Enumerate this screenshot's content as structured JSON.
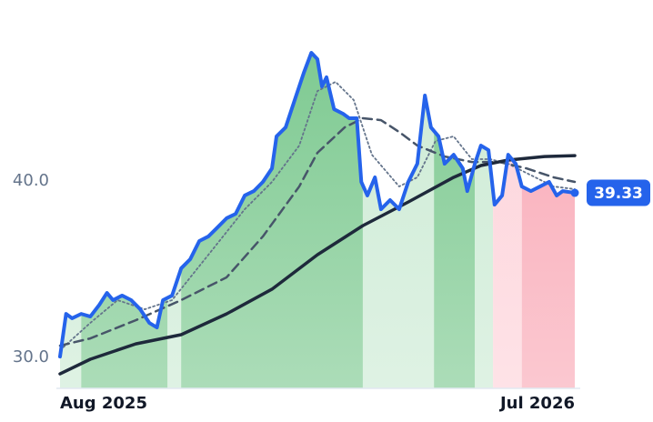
{
  "chart_data": {
    "type": "line",
    "xlim": [
      -2.4,
      343.6
    ],
    "ylim": [
      28.25,
      50.26
    ],
    "xticks": [
      {
        "value": 0,
        "label": "Aug 2025"
      },
      {
        "value": 340,
        "label": "Jul 2026"
      }
    ],
    "yticks": [
      {
        "value": 30,
        "label": "30.0"
      },
      {
        "value": 40,
        "label": "40.0"
      }
    ],
    "grid": false,
    "series": [
      {
        "color": "#2563eb",
        "style": "solid",
        "x": [
          0,
          4,
          8,
          14,
          20,
          26,
          31,
          35,
          41,
          47,
          53,
          59,
          64,
          68,
          74,
          80,
          86,
          92,
          98,
          104,
          110,
          116,
          122,
          128,
          134,
          140,
          143,
          149,
          155,
          161,
          166,
          170,
          173,
          176,
          181,
          187,
          191,
          196,
          199,
          203,
          208,
          212,
          218,
          224,
          230,
          236,
          241,
          245,
          250,
          254,
          260,
          266,
          269,
          274,
          278,
          283,
          287,
          292,
          296,
          301,
          305,
          311,
          317,
          323,
          328,
          332,
          340
        ],
        "values": [
          30.05,
          32.47,
          32.22,
          32.47,
          32.32,
          32.99,
          33.66,
          33.25,
          33.51,
          33.25,
          32.73,
          31.96,
          31.7,
          33.25,
          33.51,
          35.05,
          35.57,
          36.6,
          36.86,
          37.37,
          37.89,
          38.14,
          39.18,
          39.43,
          39.95,
          40.72,
          42.53,
          43.04,
          44.59,
          46.13,
          47.27,
          46.91,
          45.36,
          45.88,
          44.07,
          43.81,
          43.56,
          43.56,
          39.95,
          39.18,
          40.21,
          38.4,
          38.92,
          38.4,
          39.95,
          40.98,
          44.85,
          43.04,
          42.53,
          40.98,
          41.49,
          40.72,
          39.43,
          40.98,
          42.01,
          41.75,
          38.66,
          39.18,
          41.49,
          40.98,
          39.69,
          39.43,
          39.69,
          39.95,
          39.18,
          39.43,
          39.33
        ]
      },
      {
        "color": "#1e293b",
        "style": "solid",
        "x": [
          0,
          20,
          50,
          80,
          110,
          140,
          170,
          200,
          230,
          260,
          278,
          296,
          320,
          340
        ],
        "values": [
          29.07,
          29.9,
          30.77,
          31.29,
          32.47,
          33.87,
          35.82,
          37.47,
          38.81,
          40.21,
          40.88,
          41.19,
          41.39,
          41.44
        ]
      },
      {
        "color": "#475569",
        "style": "dashed",
        "x": [
          0,
          20,
          50,
          80,
          110,
          134,
          158,
          170,
          188,
          200,
          212,
          224,
          236,
          254,
          272,
          290,
          308,
          326,
          340
        ],
        "values": [
          30.67,
          31.08,
          32.11,
          33.25,
          34.54,
          36.86,
          39.69,
          41.6,
          43.04,
          43.56,
          43.45,
          42.78,
          42.01,
          41.39,
          41.08,
          41.08,
          40.72,
          40.21,
          39.95
        ]
      },
      {
        "color": "#64748b",
        "style": "dotted",
        "x": [
          0,
          20,
          38,
          56,
          74,
          98,
          122,
          140,
          158,
          170,
          182,
          194,
          206,
          224,
          236,
          248,
          260,
          272,
          284,
          296,
          308,
          326,
          340
        ],
        "values": [
          30.41,
          31.96,
          33.25,
          32.73,
          33.25,
          35.82,
          38.4,
          39.95,
          42.01,
          45.1,
          45.62,
          44.59,
          41.49,
          39.69,
          40.21,
          42.27,
          42.53,
          41.24,
          41.24,
          40.98,
          40.46,
          39.69,
          39.54
        ]
      }
    ],
    "segments": [
      {
        "start": 0,
        "end": 14,
        "color": "#cdebd5"
      },
      {
        "start": 14,
        "end": 71,
        "color": "#7fca92"
      },
      {
        "start": 71,
        "end": 80,
        "color": "#cdebd5"
      },
      {
        "start": 80,
        "end": 200,
        "color": "#7fca92"
      },
      {
        "start": 200,
        "end": 247,
        "color": "#cdebd5"
      },
      {
        "start": 247,
        "end": 274,
        "color": "#7fca92"
      },
      {
        "start": 274,
        "end": 286,
        "color": "#cdebd5"
      },
      {
        "start": 286,
        "end": 305,
        "color": "#fdd3da"
      },
      {
        "start": 305,
        "end": 340,
        "color": "#f9aab7"
      }
    ]
  }
}
